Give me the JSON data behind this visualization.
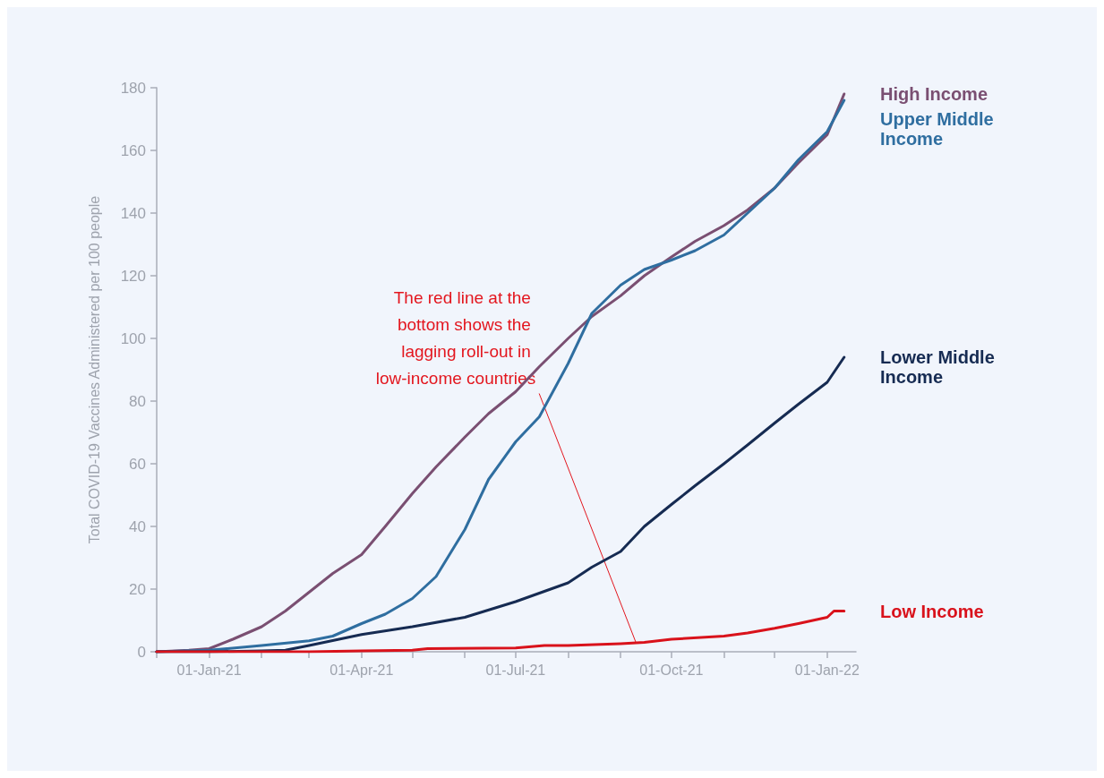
{
  "chart_data": {
    "type": "line",
    "ylabel": "Total COVID-19 Vaccines Administered per 100 people",
    "xlim": [
      "2020-12-01",
      "2022-01-18"
    ],
    "xticks": [
      {
        "value": "2020-12-01",
        "label": null
      },
      {
        "value": "2021-01-01",
        "label": "01-Jan-21"
      },
      {
        "value": "2021-02-01",
        "label": null
      },
      {
        "value": "2021-03-01",
        "label": null
      },
      {
        "value": "2021-04-01",
        "label": "01-Apr-21"
      },
      {
        "value": "2021-05-01",
        "label": null
      },
      {
        "value": "2021-06-01",
        "label": null
      },
      {
        "value": "2021-07-01",
        "label": "01-Jul-21"
      },
      {
        "value": "2021-08-01",
        "label": null
      },
      {
        "value": "2021-09-01",
        "label": null
      },
      {
        "value": "2021-10-01",
        "label": "01-Oct-21"
      },
      {
        "value": "2021-11-01",
        "label": null
      },
      {
        "value": "2021-12-01",
        "label": null
      },
      {
        "value": "2022-01-01",
        "label": "01-Jan-22"
      }
    ],
    "ylim": [
      0,
      180
    ],
    "yticks": [
      0,
      20,
      40,
      60,
      80,
      100,
      120,
      140,
      160,
      180
    ],
    "grid": false,
    "legend": false,
    "marker": "none",
    "line_style": "solid",
    "annotations": [
      {
        "text": "The red line at the bottom shows the lagging roll-out in low-income countries",
        "x": "2021-09-10",
        "y": 3
      }
    ],
    "series": [
      {
        "name": "High Income",
        "color": "#7a4f72",
        "x": [
          "2020-12-01",
          "2020-12-20",
          "2021-01-01",
          "2021-01-15",
          "2021-02-01",
          "2021-02-15",
          "2021-03-01",
          "2021-03-15",
          "2021-04-01",
          "2021-04-15",
          "2021-05-01",
          "2021-05-15",
          "2021-06-01",
          "2021-06-15",
          "2021-07-01",
          "2021-07-15",
          "2021-08-01",
          "2021-08-15",
          "2021-09-01",
          "2021-09-15",
          "2021-10-01",
          "2021-10-15",
          "2021-11-01",
          "2021-11-15",
          "2021-12-01",
          "2021-12-15",
          "2022-01-01",
          "2022-01-11"
        ],
        "values": [
          0,
          0.5,
          1,
          4,
          8,
          13,
          19,
          25,
          31,
          40,
          50.5,
          59,
          68.5,
          76,
          83,
          91,
          100,
          107,
          113.6,
          120,
          126,
          131,
          136,
          141,
          148,
          156,
          165,
          178
        ]
      },
      {
        "name": "Upper Middle Income",
        "color": "#2f6ea0",
        "x": [
          "2020-12-01",
          "2021-01-01",
          "2021-02-01",
          "2021-03-01",
          "2021-03-15",
          "2021-04-01",
          "2021-04-15",
          "2021-05-01",
          "2021-05-15",
          "2021-06-01",
          "2021-06-15",
          "2021-07-01",
          "2021-07-15",
          "2021-08-01",
          "2021-08-15",
          "2021-09-01",
          "2021-09-15",
          "2021-10-01",
          "2021-10-15",
          "2021-11-01",
          "2021-11-15",
          "2021-12-01",
          "2021-12-15",
          "2022-01-01",
          "2022-01-11"
        ],
        "values": [
          0,
          0.5,
          2,
          3.5,
          5,
          9,
          12,
          17,
          24,
          39,
          55,
          67,
          75,
          92,
          108,
          117,
          122,
          125,
          128,
          133,
          140,
          148,
          157,
          166,
          176
        ]
      },
      {
        "name": "Lower Middle Income",
        "color": "#162b52",
        "x": [
          "2020-12-01",
          "2021-01-01",
          "2021-02-01",
          "2021-02-15",
          "2021-03-01",
          "2021-04-01",
          "2021-05-01",
          "2021-06-01",
          "2021-07-01",
          "2021-08-01",
          "2021-08-15",
          "2021-09-01",
          "2021-09-15",
          "2021-10-01",
          "2021-10-15",
          "2021-11-01",
          "2021-11-15",
          "2021-12-01",
          "2021-12-15",
          "2022-01-01",
          "2022-01-11"
        ],
        "values": [
          0,
          0,
          0.3,
          0.5,
          2,
          5.5,
          8,
          11,
          16,
          22,
          27,
          32,
          40,
          47,
          53,
          60,
          66,
          73,
          79,
          86,
          94
        ]
      },
      {
        "name": "Low Income",
        "color": "#d9121b",
        "x": [
          "2020-12-01",
          "2021-03-01",
          "2021-04-01",
          "2021-05-01",
          "2021-05-10",
          "2021-07-01",
          "2021-07-18",
          "2021-08-01",
          "2021-09-01",
          "2021-09-15",
          "2021-10-01",
          "2021-11-01",
          "2021-11-15",
          "2021-12-01",
          "2021-12-15",
          "2022-01-01",
          "2022-01-05",
          "2022-01-11"
        ],
        "values": [
          0,
          0,
          0.3,
          0.5,
          1,
          1.2,
          2,
          2,
          2.6,
          3,
          4,
          5,
          6,
          7.5,
          9,
          11,
          13,
          13
        ]
      }
    ]
  }
}
